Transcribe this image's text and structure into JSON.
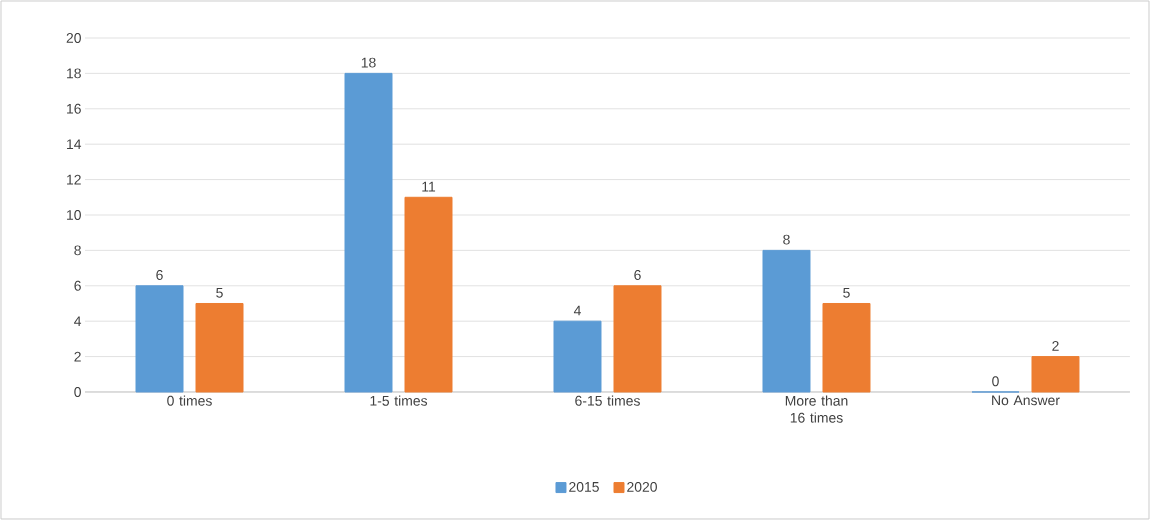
{
  "chart_data": {
    "type": "bar",
    "categories": [
      "0 times",
      "1-5 times",
      "6-15 times",
      "More than 16 times",
      "No Answer"
    ],
    "series": [
      {
        "name": "2015",
        "color": "#5b9bd5",
        "values": [
          6,
          18,
          4,
          8,
          0
        ]
      },
      {
        "name": "2020",
        "color": "#ed7d31",
        "values": [
          5,
          11,
          6,
          5,
          2
        ]
      }
    ],
    "ylim": [
      0,
      20
    ],
    "yticks": [
      0,
      2,
      4,
      6,
      8,
      10,
      12,
      14,
      16,
      18,
      20
    ],
    "grid": "y",
    "legend": "bottom",
    "data_labels": true
  }
}
